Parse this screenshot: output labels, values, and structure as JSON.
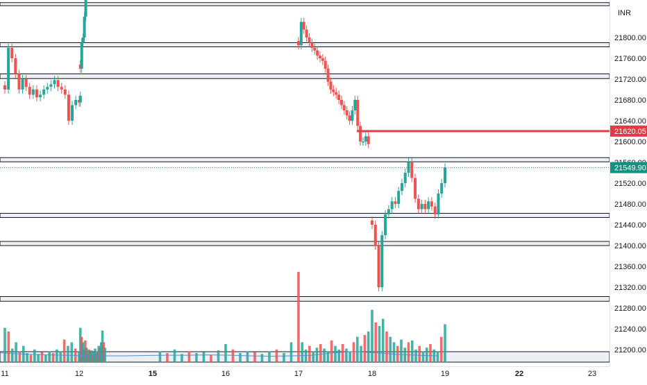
{
  "currency": "INR",
  "colors": {
    "up": "#26a69a",
    "down": "#ef5350",
    "avg_line": "#5b8fc4",
    "zone_fill": "#eceff3",
    "line": "#131722",
    "axis_text": "#131722",
    "price_line": "#e53a45",
    "last_bg": "#16917f"
  },
  "chart_data": {
    "type": "candlestick",
    "xlabel": "",
    "ylabel": "",
    "ylim": [
      21178,
      21900
    ],
    "x_ticks": [
      {
        "label": "11",
        "day": 11,
        "bold": false
      },
      {
        "label": "12",
        "day": 12,
        "bold": false
      },
      {
        "label": "15",
        "day": 15,
        "bold": true
      },
      {
        "label": "16",
        "day": 16,
        "bold": false
      },
      {
        "label": "17",
        "day": 17,
        "bold": false
      },
      {
        "label": "18",
        "day": 18,
        "bold": false
      },
      {
        "label": "19",
        "day": 19,
        "bold": false
      },
      {
        "label": "22",
        "day": 22,
        "bold": true
      },
      {
        "label": "23",
        "day": 23,
        "bold": false
      }
    ],
    "y_ticks": [
      "21200.00",
      "21240.00",
      "21280.00",
      "21320.00",
      "21360.00",
      "21400.00",
      "21440.00",
      "21480.00",
      "21520.00",
      "21560.00",
      "21600.00",
      "21640.00",
      "21680.00",
      "21720.00",
      "21760.00",
      "21800.00"
    ],
    "price_line": {
      "value": 21620.05,
      "label": "21620.05"
    },
    "last_price": {
      "value": 21549.9,
      "label": "21549.90"
    },
    "zones": [
      {
        "top": 21867,
        "bottom": 21861
      },
      {
        "top": 21790,
        "bottom": 21782
      },
      {
        "top": 21730,
        "bottom": 21721
      },
      {
        "top": 21569,
        "bottom": 21561
      },
      {
        "top": 21462,
        "bottom": 21454
      },
      {
        "top": 21408,
        "bottom": 21400
      },
      {
        "top": 21302,
        "bottom": 21293
      }
    ],
    "candle_groups": [
      {
        "start_day": 11.0,
        "end_day": 12.05,
        "closes": [
          21700,
          21780,
          21760,
          21730,
          21700,
          21720,
          21705,
          21690,
          21700,
          21685,
          21690,
          21700,
          21705,
          21710,
          21718,
          21705,
          21700,
          21690,
          21640,
          21670,
          21680,
          21675,
          21688
        ]
      },
      {
        "start_day": 12.05,
        "end_day": 12.6,
        "closes": [
          21740,
          21790,
          21800,
          21840,
          21880,
          21900,
          21905,
          21895,
          21900,
          21898,
          21905
        ]
      },
      {
        "start_day": 17.0,
        "end_day": 17.95,
        "closes": [
          21785,
          21830,
          21815,
          21800,
          21790,
          21780,
          21775,
          21765,
          21760,
          21755,
          21740,
          21715,
          21700,
          21695,
          21690,
          21680,
          21670,
          21660,
          21650,
          21640,
          21660,
          21680,
          21630,
          21600,
          21600,
          21610,
          21595
        ]
      },
      {
        "start_day": 18.0,
        "end_day": 19.0,
        "closes": [
          21440,
          21400,
          21320,
          21420,
          21460,
          21470,
          21485,
          21480,
          21505,
          21520,
          21540,
          21560,
          21530,
          21490,
          21470,
          21480,
          21470,
          21485,
          21475,
          21460,
          21500,
          21520,
          21550
        ]
      }
    ],
    "volume": {
      "max": 100,
      "bars": [
        {
          "day": 11.0,
          "v": 38
        },
        {
          "day": 11.05,
          "v": 34
        },
        {
          "day": 11.1,
          "v": 15
        },
        {
          "day": 11.15,
          "v": 22
        },
        {
          "day": 11.2,
          "v": 12
        },
        {
          "day": 11.25,
          "v": 18
        },
        {
          "day": 11.3,
          "v": 10
        },
        {
          "day": 11.35,
          "v": 8
        },
        {
          "day": 11.4,
          "v": 14
        },
        {
          "day": 11.45,
          "v": 9
        },
        {
          "day": 11.5,
          "v": 11
        },
        {
          "day": 11.55,
          "v": 8
        },
        {
          "day": 11.6,
          "v": 12
        },
        {
          "day": 11.65,
          "v": 10
        },
        {
          "day": 11.7,
          "v": 14
        },
        {
          "day": 11.75,
          "v": 12
        },
        {
          "day": 11.8,
          "v": 25
        },
        {
          "day": 11.85,
          "v": 18
        },
        {
          "day": 11.9,
          "v": 22
        },
        {
          "day": 11.95,
          "v": 15
        },
        {
          "day": 12.0,
          "v": 12
        },
        {
          "day": 12.05,
          "v": 38
        },
        {
          "day": 12.1,
          "v": 28
        },
        {
          "day": 12.15,
          "v": 22
        },
        {
          "day": 12.2,
          "v": 14
        },
        {
          "day": 12.25,
          "v": 24
        },
        {
          "day": 12.3,
          "v": 16
        },
        {
          "day": 12.35,
          "v": 10
        },
        {
          "day": 12.4,
          "v": 14
        },
        {
          "day": 12.45,
          "v": 11
        },
        {
          "day": 12.5,
          "v": 13
        },
        {
          "day": 12.55,
          "v": 9
        },
        {
          "day": 12.6,
          "v": 11
        },
        {
          "day": 12.65,
          "v": 15
        },
        {
          "day": 12.7,
          "v": 10
        },
        {
          "day": 12.75,
          "v": 12
        },
        {
          "day": 12.8,
          "v": 18
        },
        {
          "day": 12.85,
          "v": 16
        },
        {
          "day": 12.9,
          "v": 22
        },
        {
          "day": 12.95,
          "v": 35
        },
        {
          "day": 13.0,
          "v": 22
        },
        {
          "day": 13.05,
          "v": 16
        },
        {
          "day": 15.1,
          "v": 12
        },
        {
          "day": 15.2,
          "v": 10
        },
        {
          "day": 15.3,
          "v": 14
        },
        {
          "day": 15.4,
          "v": 9
        },
        {
          "day": 15.5,
          "v": 12
        },
        {
          "day": 15.6,
          "v": 10
        },
        {
          "day": 15.7,
          "v": 11
        },
        {
          "day": 15.8,
          "v": 8
        },
        {
          "day": 15.9,
          "v": 13
        },
        {
          "day": 16.0,
          "v": 20
        },
        {
          "day": 16.1,
          "v": 14
        },
        {
          "day": 16.2,
          "v": 10
        },
        {
          "day": 16.3,
          "v": 12
        },
        {
          "day": 16.4,
          "v": 11
        },
        {
          "day": 16.5,
          "v": 9
        },
        {
          "day": 16.6,
          "v": 12
        },
        {
          "day": 16.7,
          "v": 14
        },
        {
          "day": 16.8,
          "v": 10
        },
        {
          "day": 16.9,
          "v": 22
        },
        {
          "day": 17.0,
          "v": 100
        },
        {
          "day": 17.05,
          "v": 22
        },
        {
          "day": 17.1,
          "v": 14
        },
        {
          "day": 17.15,
          "v": 18
        },
        {
          "day": 17.2,
          "v": 12
        },
        {
          "day": 17.25,
          "v": 16
        },
        {
          "day": 17.3,
          "v": 20
        },
        {
          "day": 17.35,
          "v": 15
        },
        {
          "day": 17.4,
          "v": 12
        },
        {
          "day": 17.45,
          "v": 24
        },
        {
          "day": 17.5,
          "v": 18
        },
        {
          "day": 17.55,
          "v": 14
        },
        {
          "day": 17.6,
          "v": 20
        },
        {
          "day": 17.65,
          "v": 15
        },
        {
          "day": 17.7,
          "v": 12
        },
        {
          "day": 17.75,
          "v": 22
        },
        {
          "day": 17.8,
          "v": 28
        },
        {
          "day": 17.85,
          "v": 18
        },
        {
          "day": 17.9,
          "v": 30
        },
        {
          "day": 17.95,
          "v": 34
        },
        {
          "day": 18.0,
          "v": 58
        },
        {
          "day": 18.05,
          "v": 44
        },
        {
          "day": 18.1,
          "v": 40
        },
        {
          "day": 18.15,
          "v": 48
        },
        {
          "day": 18.2,
          "v": 34
        },
        {
          "day": 18.25,
          "v": 28
        },
        {
          "day": 18.3,
          "v": 22
        },
        {
          "day": 18.35,
          "v": 18
        },
        {
          "day": 18.4,
          "v": 25
        },
        {
          "day": 18.45,
          "v": 16
        },
        {
          "day": 18.5,
          "v": 22
        },
        {
          "day": 18.55,
          "v": 24
        },
        {
          "day": 18.6,
          "v": 14
        },
        {
          "day": 18.65,
          "v": 18
        },
        {
          "day": 18.7,
          "v": 12
        },
        {
          "day": 18.75,
          "v": 16
        },
        {
          "day": 18.8,
          "v": 20
        },
        {
          "day": 18.85,
          "v": 14
        },
        {
          "day": 18.9,
          "v": 12
        },
        {
          "day": 18.95,
          "v": 28
        },
        {
          "day": 19.0,
          "v": 42
        }
      ],
      "avg": [
        30,
        26,
        24,
        22,
        21,
        20,
        20,
        21,
        22,
        22,
        23,
        22,
        20,
        19,
        20,
        22,
        30,
        34,
        30,
        25,
        22,
        20
      ]
    }
  }
}
